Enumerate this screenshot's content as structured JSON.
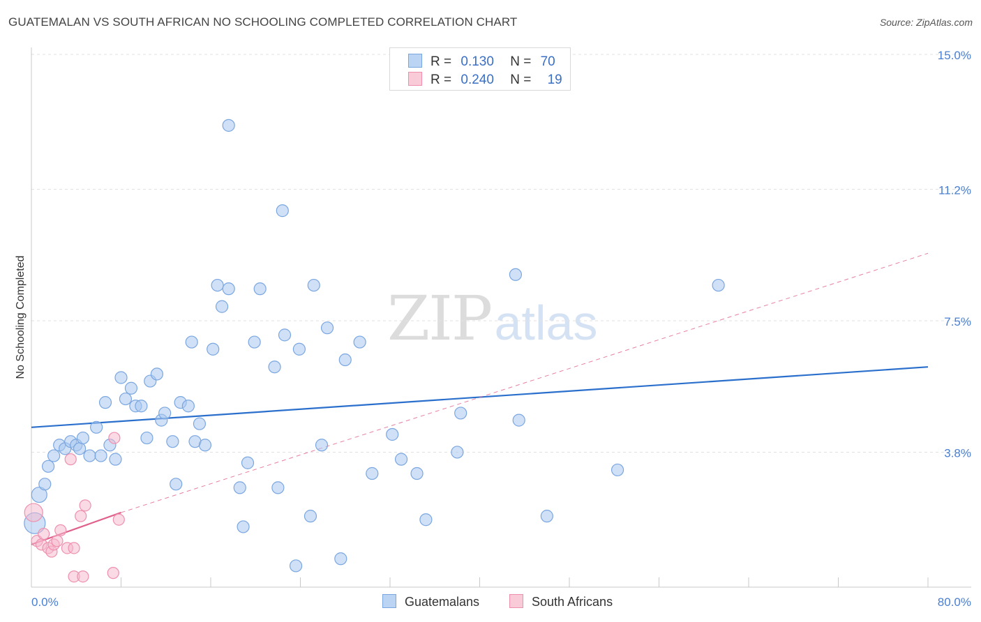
{
  "title": "GUATEMALAN VS SOUTH AFRICAN NO SCHOOLING COMPLETED CORRELATION CHART",
  "source": "Source: ZipAtlas.com",
  "watermark": {
    "zip": "ZIP",
    "atlas": "atlas"
  },
  "legend": {
    "rows": [
      {
        "r_label": "R =",
        "r_value": "0.130",
        "n_label": "N =",
        "n_value": "70"
      },
      {
        "r_label": "R =",
        "r_value": "0.240",
        "n_label": "N =",
        "n_value": "19"
      }
    ]
  },
  "bottom_legend": {
    "series1": "Guatemalans",
    "series2": "South Africans"
  },
  "colors": {
    "blue_fill": "#a9c8f0",
    "blue_stroke": "#7aa6e0",
    "blue_line": "#2a6fcc",
    "pink_fill": "#f6b8cb",
    "pink_stroke": "#ee90ad",
    "pink_line": "#e0608c",
    "tick": "#4a7fd0",
    "grid": "#e2e2e2"
  },
  "chart_data": {
    "type": "scatter",
    "title": "GUATEMALAN VS SOUTH AFRICAN NO SCHOOLING COMPLETED CORRELATION CHART",
    "xlabel": "",
    "ylabel": "No Schooling Completed",
    "xlim": [
      0,
      80
    ],
    "ylim": [
      0,
      15
    ],
    "x_tick_labels": [
      "0.0%",
      "80.0%"
    ],
    "y_ticks": [
      3.8,
      7.5,
      11.2,
      15.0
    ],
    "y_tick_labels": [
      "3.8%",
      "7.5%",
      "11.2%",
      "15.0%"
    ],
    "grid": "horizontal dashed",
    "legend_position": "top-center",
    "series": [
      {
        "name": "Guatemalans",
        "r": 0.13,
        "n": 70,
        "trend": [
          [
            0,
            4.5
          ],
          [
            80,
            6.2
          ]
        ],
        "points": [
          [
            0.3,
            1.8
          ],
          [
            0.7,
            2.6
          ],
          [
            1.2,
            2.9
          ],
          [
            1.5,
            3.4
          ],
          [
            2.0,
            3.7
          ],
          [
            2.5,
            4.0
          ],
          [
            3.0,
            3.9
          ],
          [
            3.5,
            4.1
          ],
          [
            4.0,
            4.0
          ],
          [
            4.3,
            3.9
          ],
          [
            4.6,
            4.2
          ],
          [
            5.2,
            3.7
          ],
          [
            5.8,
            4.5
          ],
          [
            6.2,
            3.7
          ],
          [
            6.6,
            5.2
          ],
          [
            7.0,
            4.0
          ],
          [
            7.5,
            3.6
          ],
          [
            8.0,
            5.9
          ],
          [
            8.4,
            5.3
          ],
          [
            8.9,
            5.6
          ],
          [
            9.3,
            5.1
          ],
          [
            9.8,
            5.1
          ],
          [
            10.3,
            4.2
          ],
          [
            10.6,
            5.8
          ],
          [
            11.2,
            6.0
          ],
          [
            11.6,
            4.7
          ],
          [
            11.9,
            4.9
          ],
          [
            12.6,
            4.1
          ],
          [
            12.9,
            2.9
          ],
          [
            13.3,
            5.2
          ],
          [
            14.0,
            5.1
          ],
          [
            14.3,
            6.9
          ],
          [
            14.6,
            4.1
          ],
          [
            15.0,
            4.6
          ],
          [
            15.5,
            4.0
          ],
          [
            16.2,
            6.7
          ],
          [
            16.6,
            8.5
          ],
          [
            17.0,
            7.9
          ],
          [
            17.6,
            8.4
          ],
          [
            17.6,
            13.0
          ],
          [
            18.6,
            2.8
          ],
          [
            18.9,
            1.7
          ],
          [
            19.3,
            3.5
          ],
          [
            19.9,
            6.9
          ],
          [
            20.4,
            8.4
          ],
          [
            21.7,
            6.2
          ],
          [
            22.0,
            2.8
          ],
          [
            22.4,
            10.6
          ],
          [
            22.6,
            7.1
          ],
          [
            23.6,
            0.6
          ],
          [
            23.9,
            6.7
          ],
          [
            24.9,
            2.0
          ],
          [
            25.2,
            8.5
          ],
          [
            25.9,
            4.0
          ],
          [
            26.4,
            7.3
          ],
          [
            27.6,
            0.8
          ],
          [
            28.0,
            6.4
          ],
          [
            29.3,
            6.9
          ],
          [
            30.4,
            3.2
          ],
          [
            32.2,
            4.3
          ],
          [
            33.0,
            3.6
          ],
          [
            34.4,
            3.2
          ],
          [
            35.2,
            1.9
          ],
          [
            38.0,
            3.8
          ],
          [
            38.3,
            4.9
          ],
          [
            43.2,
            8.8
          ],
          [
            43.5,
            4.7
          ],
          [
            46.0,
            2.0
          ],
          [
            52.3,
            3.3
          ],
          [
            61.3,
            8.5
          ]
        ]
      },
      {
        "name": "South Africans",
        "r": 0.24,
        "n": 19,
        "trend_solid": [
          [
            0,
            1.2
          ],
          [
            8.0,
            2.1
          ]
        ],
        "trend_dashed": [
          [
            8.0,
            2.1
          ],
          [
            80,
            9.4
          ]
        ],
        "points": [
          [
            0.2,
            2.1
          ],
          [
            0.5,
            1.3
          ],
          [
            0.9,
            1.2
          ],
          [
            1.1,
            1.5
          ],
          [
            1.5,
            1.1
          ],
          [
            1.8,
            1.0
          ],
          [
            2.0,
            1.2
          ],
          [
            2.3,
            1.3
          ],
          [
            2.6,
            1.6
          ],
          [
            3.2,
            1.1
          ],
          [
            3.5,
            3.6
          ],
          [
            3.8,
            0.3
          ],
          [
            3.8,
            1.1
          ],
          [
            4.4,
            2.0
          ],
          [
            4.6,
            0.3
          ],
          [
            4.8,
            2.3
          ],
          [
            7.3,
            0.4
          ],
          [
            7.4,
            4.2
          ],
          [
            7.8,
            1.9
          ]
        ]
      }
    ]
  }
}
